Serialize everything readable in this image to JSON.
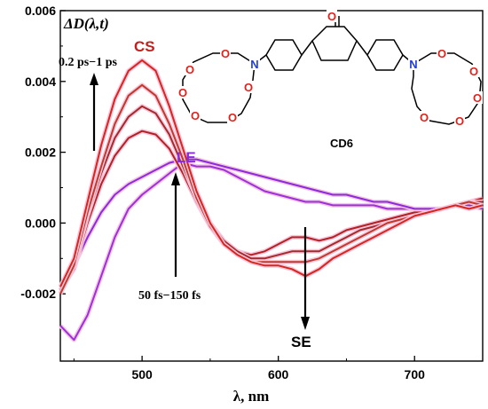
{
  "chart_data": {
    "type": "line",
    "ylabel": "ΔD(λ,t)",
    "xlabel": "λ, nm",
    "xlim": [
      440,
      750
    ],
    "ylim": [
      -0.0039,
      0.006
    ],
    "x_ticks": [
      500,
      600,
      700
    ],
    "x_tick_labels": [
      "500",
      "600",
      "700"
    ],
    "y_ticks": [
      -0.002,
      0.0,
      0.002,
      0.004,
      0.006
    ],
    "y_tick_labels": [
      "-0.002",
      "0.000",
      "0.002",
      "0.004",
      "0.006"
    ],
    "x": [
      440,
      450,
      460,
      470,
      480,
      490,
      500,
      510,
      520,
      530,
      540,
      550,
      560,
      570,
      580,
      590,
      600,
      610,
      620,
      630,
      640,
      650,
      660,
      670,
      680,
      690,
      700,
      710,
      720,
      730,
      740,
      750
    ],
    "series": [
      {
        "color": "#9a30e0",
        "values": [
          -0.0029,
          -0.0033,
          -0.0026,
          -0.0015,
          -0.0004,
          0.0004,
          0.0008,
          0.0011,
          0.0014,
          0.0017,
          0.0016,
          0.0016,
          0.0015,
          0.0013,
          0.0011,
          0.0009,
          0.0008,
          0.0007,
          0.0006,
          0.0006,
          0.0005,
          0.0005,
          0.0005,
          0.0005,
          0.0004,
          0.0004,
          0.0004,
          0.0004,
          0.0004,
          0.0005,
          0.0006,
          0.0005
        ]
      },
      {
        "color": "#8a2be2",
        "values": [
          -0.0018,
          -0.0012,
          -0.0004,
          0.0003,
          0.0008,
          0.0011,
          0.0013,
          0.0015,
          0.0017,
          0.0018,
          0.0018,
          0.0017,
          0.0016,
          0.0015,
          0.0014,
          0.0013,
          0.0012,
          0.0011,
          0.001,
          0.0009,
          0.0008,
          0.0008,
          0.0007,
          0.0006,
          0.0006,
          0.0005,
          0.0004,
          0.0004,
          0.0004,
          0.0005,
          0.0005,
          0.0004
        ]
      },
      {
        "color": "#b22222",
        "values": [
          -0.0019,
          -0.0013,
          0.0,
          0.0011,
          0.0019,
          0.0024,
          0.0026,
          0.0025,
          0.0021,
          0.0014,
          0.0006,
          -0.0001,
          -0.0005,
          -0.0008,
          -0.0009,
          -0.0008,
          -0.0006,
          -0.0004,
          -0.0004,
          -0.0005,
          -0.0004,
          -0.0002,
          -0.0001,
          0.0,
          0.0001,
          0.0002,
          0.0003,
          0.0003,
          0.0004,
          0.0005,
          0.0006,
          0.0007
        ]
      },
      {
        "color": "#a52a2a",
        "values": [
          -0.0019,
          -0.0012,
          0.0002,
          0.0014,
          0.0024,
          0.003,
          0.0033,
          0.0031,
          0.0025,
          0.0016,
          0.0007,
          0.0,
          -0.0005,
          -0.0008,
          -0.001,
          -0.001,
          -0.0009,
          -0.0008,
          -0.0008,
          -0.0008,
          -0.0006,
          -0.0004,
          -0.0002,
          -0.0001,
          0.0,
          0.0001,
          0.0002,
          0.0003,
          0.0004,
          0.0005,
          0.0006,
          0.0006
        ]
      },
      {
        "color": "#c0392b",
        "values": [
          -0.002,
          -0.0012,
          0.0003,
          0.0016,
          0.0028,
          0.0036,
          0.0039,
          0.0036,
          0.0028,
          0.0018,
          0.0007,
          -0.0001,
          -0.0006,
          -0.0009,
          -0.0011,
          -0.0011,
          -0.0011,
          -0.0011,
          -0.0011,
          -0.001,
          -0.0008,
          -0.0006,
          -0.0004,
          -0.0002,
          0.0,
          0.0001,
          0.0002,
          0.0003,
          0.0004,
          0.0005,
          0.0006,
          0.0005
        ]
      },
      {
        "color": "#d7261e",
        "values": [
          -0.0018,
          -0.001,
          0.0006,
          0.0022,
          0.0035,
          0.0043,
          0.0046,
          0.0043,
          0.0033,
          0.0021,
          0.0009,
          0.0,
          -0.0006,
          -0.0009,
          -0.0011,
          -0.0012,
          -0.0012,
          -0.0013,
          -0.0015,
          -0.0013,
          -0.001,
          -0.0008,
          -0.0006,
          -0.0004,
          -0.0002,
          0.0,
          0.0002,
          0.0003,
          0.0004,
          0.0005,
          0.0004,
          0.0005
        ]
      }
    ]
  },
  "annotations": {
    "cs": "CS",
    "le": "LE",
    "se": "SE",
    "fast_range": "0.2 ps−1 ps",
    "slow_range": "50 fs−150 fs",
    "molecule": "CD6"
  },
  "molecule_atoms": {
    "oxygen": "O",
    "nitrogen": "N"
  }
}
